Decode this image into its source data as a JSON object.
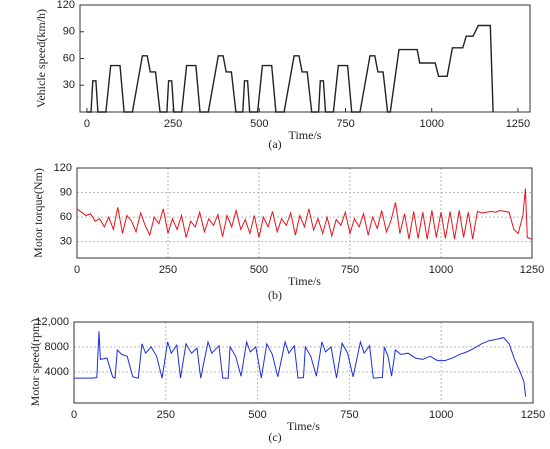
{
  "chart_data": [
    {
      "type": "line",
      "xlabel": "Time/s",
      "ylabel": "Vehicle speed(km/h)",
      "caption": "(a)",
      "xlim": [
        -20,
        1285
      ],
      "ylim": [
        0,
        120
      ],
      "xticks": [
        0,
        250,
        500,
        750,
        1000,
        1250
      ],
      "yticks": [
        30,
        60,
        90,
        120
      ],
      "grid": false,
      "series": [
        {
          "color": "#222222",
          "x": [
            0,
            12,
            17,
            26,
            32,
            55,
            69,
            96,
            108,
            132,
            161,
            175,
            184,
            199,
            212,
            232,
            237,
            246,
            252,
            275,
            289,
            316,
            328,
            352,
            381,
            395,
            404,
            419,
            432,
            452,
            457,
            466,
            472,
            495,
            509,
            536,
            548,
            572,
            601,
            615,
            624,
            639,
            652,
            672,
            677,
            686,
            692,
            715,
            729,
            756,
            768,
            792,
            821,
            835,
            844,
            859,
            872,
            880,
            905,
            958,
            965,
            1010,
            1020,
            1045,
            1060,
            1090,
            1100,
            1120,
            1135,
            1170,
            1178
          ],
          "values": [
            0,
            0,
            35,
            35,
            0,
            0,
            52,
            52,
            0,
            0,
            63,
            63,
            45,
            45,
            0,
            0,
            35,
            35,
            0,
            0,
            52,
            52,
            0,
            0,
            63,
            63,
            45,
            45,
            0,
            0,
            35,
            35,
            0,
            0,
            52,
            52,
            0,
            0,
            63,
            63,
            45,
            45,
            0,
            0,
            35,
            35,
            0,
            0,
            52,
            52,
            0,
            0,
            63,
            63,
            45,
            45,
            0,
            0,
            70,
            70,
            55,
            55,
            40,
            40,
            72,
            72,
            85,
            85,
            97,
            97,
            0
          ]
        }
      ]
    },
    {
      "type": "line",
      "xlabel": "Time/s",
      "ylabel": "Motor torque(Nm)",
      "caption": "(b)",
      "xlim": [
        0,
        1250
      ],
      "ylim": [
        10,
        120
      ],
      "xticks": [
        0,
        250,
        500,
        750,
        1000,
        1250
      ],
      "yticks": [
        30,
        60,
        90,
        120
      ],
      "grid": true,
      "series": [
        {
          "color": "#e8121a",
          "x": [
            0,
            12,
            25,
            37,
            50,
            62,
            75,
            87,
            100,
            112,
            125,
            137,
            150,
            162,
            175,
            187,
            200,
            212,
            225,
            237,
            250,
            262,
            275,
            287,
            300,
            312,
            325,
            337,
            350,
            362,
            375,
            387,
            400,
            412,
            425,
            437,
            450,
            462,
            475,
            487,
            500,
            512,
            525,
            537,
            550,
            562,
            575,
            587,
            600,
            612,
            625,
            637,
            650,
            662,
            675,
            687,
            700,
            712,
            725,
            737,
            750,
            762,
            775,
            787,
            800,
            812,
            825,
            837,
            850,
            862,
            875,
            887,
            900,
            912,
            925,
            937,
            950,
            962,
            975,
            987,
            1000,
            1012,
            1025,
            1037,
            1050,
            1062,
            1075,
            1087,
            1100,
            1112,
            1125,
            1137,
            1150,
            1162,
            1175,
            1187,
            1200,
            1212,
            1225,
            1232,
            1237,
            1250
          ],
          "values": [
            70,
            66,
            62,
            64,
            55,
            58,
            48,
            60,
            45,
            72,
            40,
            62,
            55,
            42,
            65,
            50,
            38,
            60,
            52,
            70,
            40,
            58,
            45,
            62,
            35,
            55,
            48,
            66,
            42,
            58,
            50,
            63,
            36,
            62,
            48,
            68,
            45,
            57,
            40,
            62,
            35,
            60,
            48,
            67,
            42,
            58,
            50,
            65,
            38,
            62,
            48,
            70,
            44,
            58,
            40,
            60,
            37,
            57,
            50,
            66,
            40,
            58,
            48,
            64,
            38,
            60,
            46,
            68,
            42,
            55,
            78,
            40,
            64,
            33,
            67,
            34,
            66,
            33,
            68,
            35,
            66,
            34,
            67,
            33,
            68,
            35,
            66,
            33,
            67,
            65,
            66,
            67,
            66,
            68,
            67,
            66,
            45,
            40,
            62,
            95,
            35,
            33
          ]
        }
      ]
    },
    {
      "type": "line",
      "xlabel": "Time/s",
      "ylabel": "Motor speed(rpm)",
      "caption": "(c)",
      "xlim": [
        0,
        1250
      ],
      "ylim": [
        -1000,
        12000
      ],
      "xticks": [
        0,
        250,
        500,
        750,
        1000,
        1250
      ],
      "yticks": [
        4000,
        8000,
        {
          "value": 12000,
          "label": "12,000"
        }
      ],
      "grid": true,
      "series": [
        {
          "color": "#1a2fe0",
          "x": [
            0,
            50,
            62,
            68,
            72,
            90,
            105,
            112,
            118,
            130,
            145,
            160,
            175,
            185,
            195,
            210,
            225,
            240,
            255,
            265,
            280,
            290,
            305,
            320,
            335,
            345,
            365,
            375,
            395,
            405,
            420,
            425,
            440,
            455,
            470,
            480,
            495,
            510,
            525,
            540,
            555,
            575,
            585,
            600,
            610,
            625,
            630,
            645,
            660,
            675,
            685,
            700,
            715,
            730,
            745,
            760,
            780,
            790,
            805,
            815,
            840,
            845,
            855,
            865,
            875,
            890,
            910,
            930,
            950,
            970,
            990,
            1010,
            1030,
            1050,
            1070,
            1090,
            1110,
            1130,
            1150,
            1170,
            1185,
            1200,
            1215,
            1225,
            1230
          ],
          "values": [
            3000,
            3000,
            3100,
            10500,
            6000,
            6200,
            3200,
            3000,
            7500,
            6800,
            6500,
            3200,
            3000,
            8500,
            7000,
            8000,
            6500,
            3000,
            8800,
            7000,
            8300,
            3000,
            8500,
            7000,
            7800,
            3000,
            8800,
            7000,
            8200,
            3000,
            3000,
            8000,
            6500,
            3300,
            8800,
            7200,
            8000,
            3000,
            8500,
            6800,
            3200,
            8800,
            7000,
            8200,
            3000,
            3100,
            8000,
            6500,
            3300,
            8800,
            7200,
            8000,
            3000,
            8600,
            7000,
            3200,
            8800,
            7000,
            8200,
            3000,
            3100,
            8000,
            6500,
            3300,
            7500,
            6800,
            7000,
            6200,
            6000,
            6500,
            5800,
            5800,
            6200,
            6800,
            7200,
            7800,
            8500,
            9000,
            9200,
            9500,
            8500,
            6000,
            4000,
            2500,
            0
          ]
        }
      ]
    }
  ]
}
